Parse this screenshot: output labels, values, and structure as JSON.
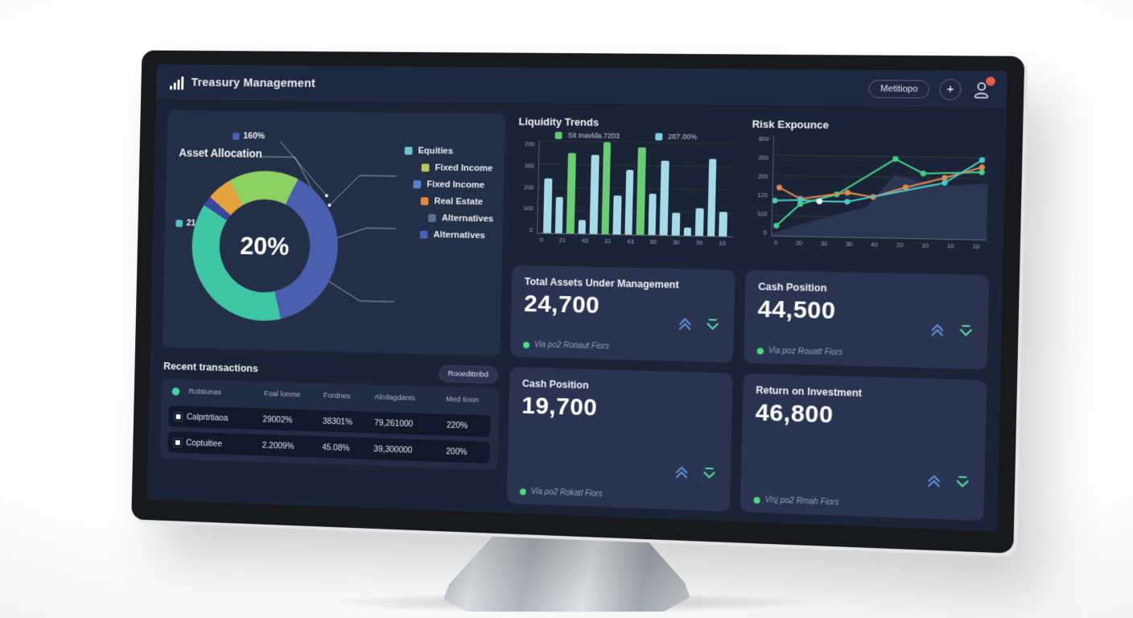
{
  "nav": {
    "title": "Treasury Management",
    "menu_label": "Metitiopo",
    "add_label": "+"
  },
  "asset_allocation": {
    "title": "Asset Allocation",
    "center_value": "20%",
    "start_angle": 330,
    "segments": [
      {
        "label": "growth",
        "color": "#8ed163",
        "sweep": 56
      },
      {
        "label": "equities-blue",
        "color": "#4a60ae",
        "sweep": 140
      },
      {
        "label": "teal",
        "color": "#3fc7a5",
        "sweep": 136
      },
      {
        "label": "navy-sliver",
        "color": "#39489e",
        "sweep": 8
      },
      {
        "label": "orange",
        "color": "#e5a33e",
        "sweep": 20
      }
    ],
    "callouts": [
      {
        "label": "160%",
        "color": "#4a5fb5"
      },
      {
        "label": "21.60%",
        "color": "#4fc3c7"
      }
    ],
    "legend": [
      {
        "label": "Equities",
        "color": "#6ec6cf"
      },
      {
        "label": "Fixed Income",
        "color": "#b8c95a"
      },
      {
        "label": "Fixed Income",
        "color": "#5b7fc8"
      },
      {
        "label": "Real Estate",
        "color": "#e8873c"
      },
      {
        "label": "Alternatives",
        "color": "#5a7296"
      },
      {
        "label": "Alternatives",
        "color": "#4a5fb5"
      }
    ]
  },
  "liquidity": {
    "title": "Liquidity Trends",
    "type": "bar",
    "legend": [
      {
        "label": "Sit Inavlda.7203",
        "color": "#66c96f"
      },
      {
        "label": "287.00%",
        "color": "#7fd3e0"
      }
    ],
    "y_ticks": [
      "200",
      "300",
      "200",
      "100",
      "0"
    ],
    "x_ticks": [
      "0",
      "21",
      "43",
      "31",
      "43",
      "60",
      "30",
      "39",
      "10"
    ],
    "bars": [
      {
        "value": 59,
        "color": "#a5dbe8"
      },
      {
        "value": 39,
        "color": "#a5dbe8"
      },
      {
        "value": 87,
        "color": "#69cd74"
      },
      {
        "value": 15,
        "color": "#a5dbe8"
      },
      {
        "value": 85,
        "color": "#a5dbe8"
      },
      {
        "value": 99,
        "color": "#69cd74"
      },
      {
        "value": 42,
        "color": "#a5dbe8"
      },
      {
        "value": 70,
        "color": "#a5dbe8"
      },
      {
        "value": 94,
        "color": "#69cd74"
      },
      {
        "value": 44,
        "color": "#a5dbe8"
      },
      {
        "value": 80,
        "color": "#a5dbe8"
      },
      {
        "value": 24,
        "color": "#a5dbe8"
      },
      {
        "value": 9,
        "color": "#a5dbe8"
      },
      {
        "value": 30,
        "color": "#a5dbe8"
      },
      {
        "value": 83,
        "color": "#a5dbe8"
      },
      {
        "value": 26,
        "color": "#a5dbe8"
      }
    ]
  },
  "risk": {
    "title": "Risk Expounce",
    "type": "line",
    "y_ticks": [
      "800",
      "200",
      "200",
      "120",
      "100",
      "0"
    ],
    "x_ticks": [
      "0",
      "20",
      "30",
      "30",
      "40",
      "20",
      "10",
      "10",
      "10"
    ],
    "area": {
      "color": "#2d3a55",
      "points": [
        [
          0,
          2
        ],
        [
          14,
          12
        ],
        [
          30,
          22
        ],
        [
          44,
          30
        ],
        [
          57,
          62
        ],
        [
          66,
          58
        ],
        [
          80,
          52
        ],
        [
          100,
          55
        ]
      ]
    },
    "series": [
      {
        "name": "green",
        "color": "#43d08b",
        "points": [
          [
            2,
            10
          ],
          [
            13,
            32
          ],
          [
            30,
            42
          ],
          [
            57,
            78
          ],
          [
            70,
            64
          ],
          [
            97,
            66
          ]
        ]
      },
      {
        "name": "orange",
        "color": "#dd8a4e",
        "points": [
          [
            3,
            48
          ],
          [
            13,
            37
          ],
          [
            35,
            44
          ],
          [
            47,
            40
          ],
          [
            62,
            50
          ],
          [
            80,
            60
          ],
          [
            97,
            71
          ]
        ]
      },
      {
        "name": "teal",
        "color": "#49c9c9",
        "points": [
          [
            1,
            35
          ],
          [
            13,
            36
          ],
          [
            22,
            35
          ],
          [
            35,
            35
          ],
          [
            80,
            55
          ],
          [
            97,
            78
          ]
        ]
      }
    ],
    "white_point": [
      22,
      35
    ]
  },
  "cards": [
    {
      "title": "Total Assets Under Management",
      "value": "24,700",
      "note": "Via po2 Ronaut Fiors"
    },
    {
      "title": "Cash Position",
      "value": "44,500",
      "note": "Via poz Rouatt Fiors"
    },
    {
      "title": "Cash Position",
      "value": "19,700",
      "note": "Via po2 Rokatl Fiors"
    },
    {
      "title": "Return on Investment",
      "value": "46,800",
      "note": "Visj po2 Rmah Fiors"
    }
  ],
  "transactions": {
    "title": "Recent transactions",
    "action_label": "Rooedittribd",
    "columns": [
      "Robtiunas",
      "Foal lonme",
      "Fordnes",
      "Alcdagdants",
      "Med tioon"
    ],
    "rows": [
      {
        "cells": [
          "Calprtrtiaoa",
          "29002%",
          "38301%",
          "79,261000",
          "220%"
        ]
      },
      {
        "cells": [
          "Coptuitiee",
          "2.2009%",
          "45.08%",
          "39,300000",
          "200%"
        ]
      }
    ]
  },
  "colors": {
    "accent_up": "#5b8fd4",
    "accent_down": "#52d8a0",
    "notification": "#e85f46",
    "status_green": "#4ade80"
  }
}
